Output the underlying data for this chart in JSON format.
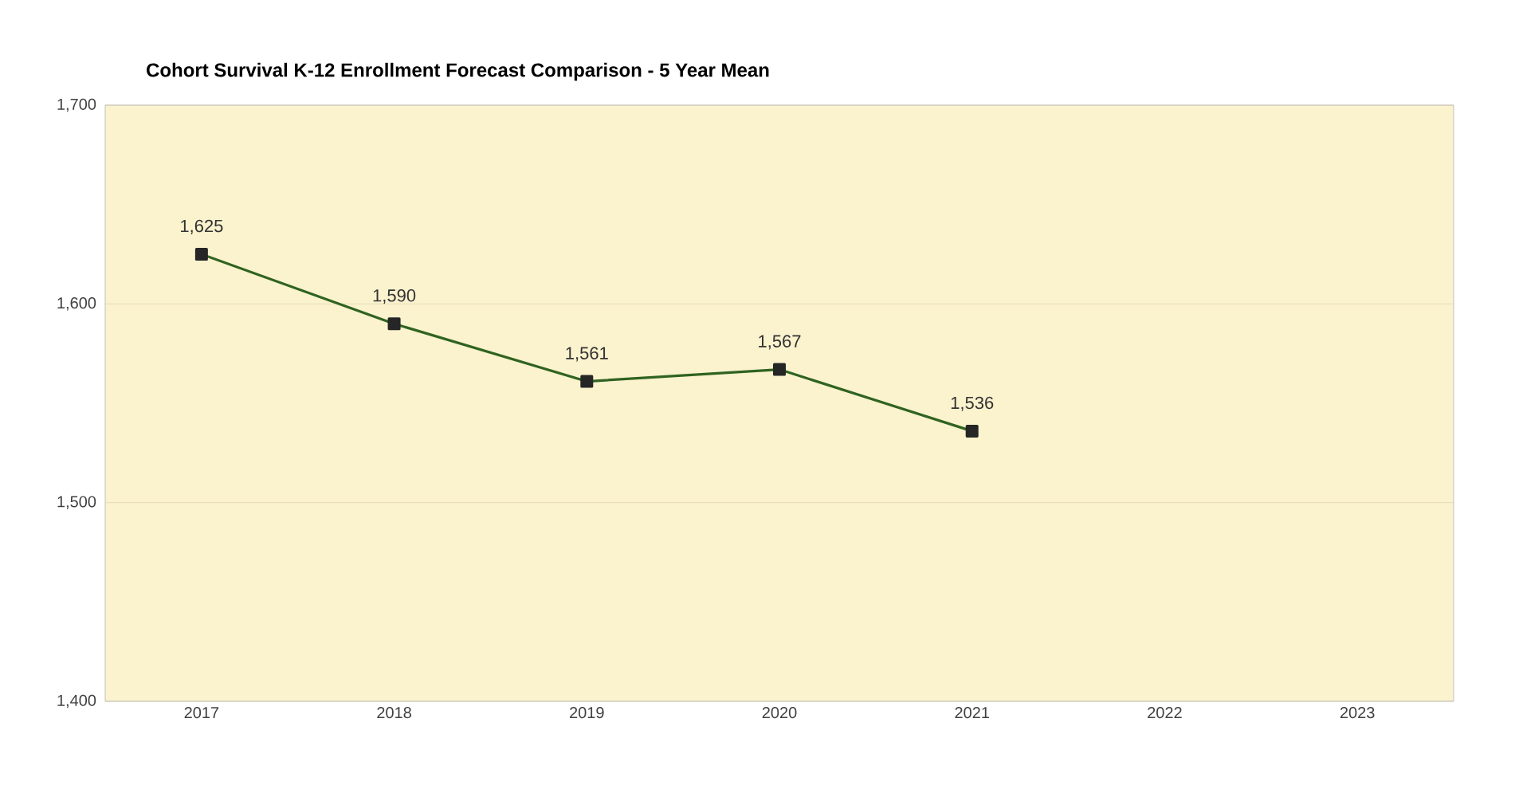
{
  "chart_data": {
    "type": "line",
    "title": "Cohort Survival K-12  Enrollment Forecast Comparison  - 5 Year Mean",
    "categories": [
      "2017",
      "2018",
      "2019",
      "2020",
      "2021",
      "2022",
      "2023"
    ],
    "values": [
      1625,
      1590,
      1561,
      1567,
      1536,
      null,
      null
    ],
    "value_labels": [
      "1,625",
      "1,590",
      "1,561",
      "1,567",
      "1,536",
      null,
      null
    ],
    "color": "#2f6320",
    "ylim": [
      1400,
      1700
    ],
    "yticks": [
      {
        "value": 1400,
        "label": "1,400"
      },
      {
        "value": 1500,
        "label": "1,500"
      },
      {
        "value": 1600,
        "label": "1,600"
      },
      {
        "value": 1700,
        "label": "1,700"
      }
    ],
    "grid": "y",
    "marker": "square",
    "line_style": "solid"
  }
}
